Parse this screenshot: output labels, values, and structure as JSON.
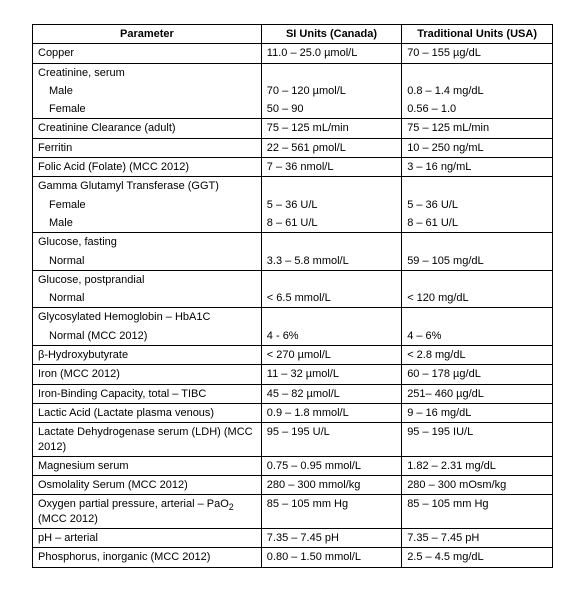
{
  "headers": {
    "parameter": "Parameter",
    "si": "SI Units (Canada)",
    "traditional": "Traditional Units (USA)"
  },
  "rows": [
    {
      "p": "Copper",
      "si": "11.0 – 25.0 µmol/L",
      "tr": "70 – 155 µg/dL",
      "type": "single"
    },
    {
      "p": "Creatinine, serum",
      "si": "",
      "tr": "",
      "type": "head"
    },
    {
      "p": "Male",
      "si": "70 – 120 µmol/L",
      "tr": "0.8 – 1.4 mg/dL",
      "type": "mid"
    },
    {
      "p": "Female",
      "si": "50 –  90",
      "tr": "0.56 – 1.0",
      "type": "tail"
    },
    {
      "p": "Creatinine Clearance (adult)",
      "si": "75 – 125 mL/min",
      "tr": "75 – 125 mL/min",
      "type": "single"
    },
    {
      "p": "Ferritin",
      "si": "22 – 561 ρmol/L",
      "tr": "10 – 250 ng/mL",
      "type": "single"
    },
    {
      "p": "Folic Acid (Folate) (MCC 2012)",
      "si": "7 – 36 nmol/L",
      "tr": "3 – 16 ng/mL",
      "type": "single"
    },
    {
      "p": "Gamma Glutamyl Transferase (GGT)",
      "si": "",
      "tr": "",
      "type": "head"
    },
    {
      "p": "Female",
      "si": "5 – 36 U/L",
      "tr": "5 – 36 U/L",
      "type": "mid"
    },
    {
      "p": "Male",
      "si": "8 – 61 U/L",
      "tr": "8 – 61 U/L",
      "type": "tail"
    },
    {
      "p": "Glucose, fasting",
      "si": "",
      "tr": "",
      "type": "head"
    },
    {
      "p": "Normal",
      "si": "3.3 – 5.8 mmol/L",
      "tr": "59 – 105 mg/dL",
      "type": "tail"
    },
    {
      "p": "Glucose, postprandial",
      "si": "",
      "tr": "",
      "type": "head"
    },
    {
      "p": "Normal",
      "si": "< 6.5  mmol/L",
      "tr": "< 120  mg/dL",
      "type": "tail"
    },
    {
      "p": "Glycosylated Hemoglobin – HbA1C",
      "si": "",
      "tr": "",
      "type": "head"
    },
    {
      "p": "Normal (MCC 2012)",
      "si": "4 - 6%",
      "tr": "4 – 6%",
      "type": "tail"
    },
    {
      "p": "β-Hydroxybutyrate",
      "si": "< 270 µmol/L",
      "tr": "< 2.8 mg/dL",
      "type": "single"
    },
    {
      "p": "Iron (MCC 2012)",
      "si": "11 – 32 µmol/L",
      "tr": "60 – 178 µg/dL",
      "type": "single"
    },
    {
      "p": "Iron-Binding Capacity, total – TIBC",
      "si": "45 – 82 µmol/L",
      "tr": "251– 460 µg/dL",
      "type": "single"
    },
    {
      "p": "Lactic Acid (Lactate plasma venous)",
      "si": "0.9 – 1.8 mmol/L",
      "tr": "9 – 16 mg/dL",
      "type": "single"
    },
    {
      "p": "Lactate Dehydrogenase serum (LDH) (MCC 2012)",
      "si": "95 – 195 U/L",
      "tr": "95 – 195 IU/L",
      "type": "single"
    },
    {
      "p": "Magnesium serum",
      "si": "0.75 – 0.95 mmol/L",
      "tr": "1.82 – 2.31 mg/dL",
      "type": "single"
    },
    {
      "p": "Osmolality Serum (MCC 2012)",
      "si": "280 – 300 mmol/kg",
      "tr": "280 – 300 mOsm/kg",
      "type": "single"
    },
    {
      "p": "Oxygen partial pressure, arterial – PaO₂ (MCC 2012)",
      "si": "85 – 105 mm Hg",
      "tr": "85 – 105 mm Hg",
      "type": "single"
    },
    {
      "p": "pH – arterial",
      "si": "7.35 – 7.45 pH",
      "tr": "7.35 – 7.45 pH",
      "type": "single"
    },
    {
      "p": "Phosphorus, inorganic (MCC 2012)",
      "si": "0.80 – 1.50 mmol/L",
      "tr": "2.5 – 4.5 mg/dL",
      "type": "single"
    }
  ],
  "style": {
    "font_family": "Arial",
    "font_size_pt": 8,
    "border_color": "#000000",
    "background": "#ffffff",
    "text_color": "#000000",
    "col_widths_pct": [
      44,
      27,
      29
    ]
  }
}
